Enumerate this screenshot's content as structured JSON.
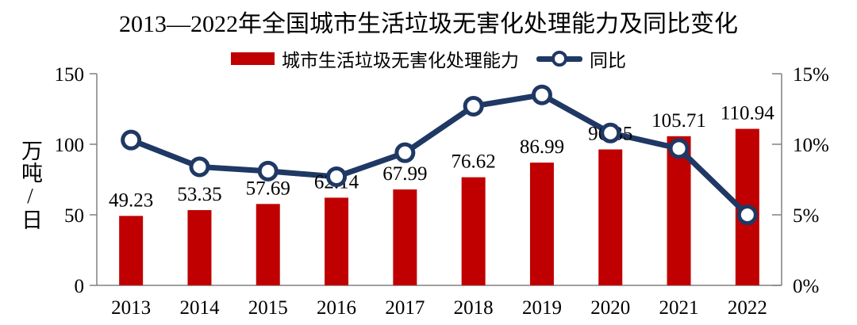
{
  "chart_data": {
    "type": "bar+line",
    "title": "2013—2022年全国城市生活垃圾无害化处理能力及同比变化",
    "categories": [
      "2013",
      "2014",
      "2015",
      "2016",
      "2017",
      "2018",
      "2019",
      "2020",
      "2021",
      "2022"
    ],
    "series": [
      {
        "name": "城市生活垃圾无害化处理能力",
        "type": "bar",
        "axis": "left",
        "color": "#C00000",
        "values": [
          49.23,
          53.35,
          57.69,
          62.14,
          67.99,
          76.62,
          86.99,
          96.35,
          105.71,
          110.94
        ],
        "data_labels": [
          "49.23",
          "53.35",
          "57.69",
          "62.14",
          "67.99",
          "76.62",
          "86.99",
          "96.35",
          "105.71",
          "110.94"
        ]
      },
      {
        "name": "同比",
        "type": "line",
        "axis": "right",
        "color": "#1F3864",
        "marker": "hollow-circle",
        "values_percent": [
          10.3,
          8.4,
          8.1,
          7.7,
          9.4,
          12.7,
          13.5,
          10.8,
          9.7,
          5.0
        ]
      }
    ],
    "left_axis": {
      "label": "万吨/日",
      "ticks": [
        "0",
        "50",
        "100",
        "150"
      ],
      "min": 0,
      "max": 150
    },
    "right_axis": {
      "ticks": [
        "0%",
        "5%",
        "10%",
        "15%"
      ],
      "min": 0,
      "max": 15
    },
    "grid": false,
    "legend_position": "top",
    "axis_color": "#808080",
    "text_color": "#000000"
  }
}
